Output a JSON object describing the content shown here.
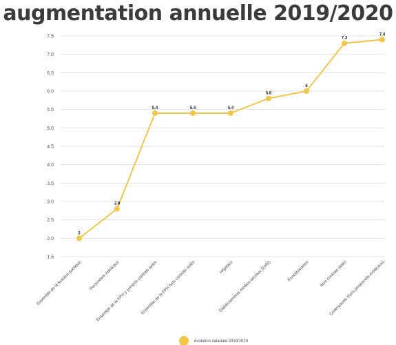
{
  "title": "augmentation annuelle 2019/2020",
  "chart_data": {
    "type": "line",
    "categories": [
      "Ensemble de la fonction publique",
      "Personnels médicaux",
      "Ensemble de la FPH y compris contrats aidés",
      "Ensemble de la FPH hors contrats aidés",
      "Hôpitaux",
      "Établissements médico-sociaux (EMS)",
      "Fonctionnaires",
      "hors contrats aidés",
      "Contractuels (hors personnels médicaux)"
    ],
    "series": [
      {
        "name": "évolution salariale 2019/2020",
        "values": [
          2,
          2.8,
          5.4,
          5.4,
          5.4,
          5.8,
          6,
          7.3,
          7.4
        ],
        "labels": [
          "2",
          "2.8",
          "5.4",
          "5.4",
          "5.4",
          "5.8",
          "6",
          "7.3",
          "7.4"
        ]
      }
    ],
    "yticks": [
      "1.5",
      "2.0",
      "2.5",
      "3.0",
      "3.5",
      "4.0",
      "4.5",
      "5.0",
      "5.5",
      "6.0",
      "6.5",
      "7.0",
      "7.5"
    ],
    "ylim": [
      1.5,
      7.5
    ],
    "grid": true,
    "legend": "bottom",
    "color": "#f2c649"
  }
}
